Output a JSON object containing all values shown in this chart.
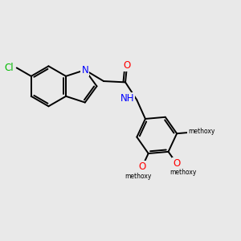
{
  "bg_color": "#e9e9e9",
  "bond_color": "#000000",
  "bond_width": 1.4,
  "atom_colors": {
    "N": "#0000ff",
    "O": "#ff0000",
    "Cl": "#00bb00",
    "C": "#000000"
  },
  "font_size": 8.5,
  "label_size": 8.0,
  "ome_label": "O",
  "me_label": "methoxy"
}
